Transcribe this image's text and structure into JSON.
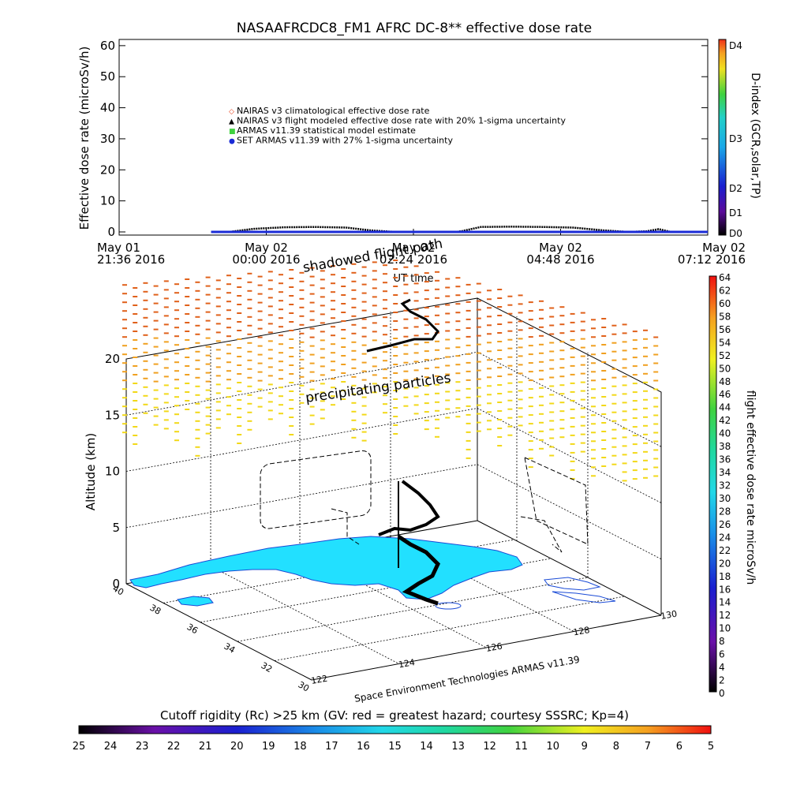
{
  "title": "NASAAFRCDC8_FM1 AFRC DC-8** effective dose rate",
  "top_chart": {
    "ylabel": "Effective dose rate (microSv/h)",
    "xlabel": "UT time",
    "y_ticks": [
      "0",
      "10",
      "20",
      "30",
      "40",
      "50",
      "60"
    ],
    "x_ticks": [
      {
        "line1": "May 01",
        "line2": "21:36 2016"
      },
      {
        "line1": "May 02",
        "line2": "00:00 2016"
      },
      {
        "line1": "May 02",
        "line2": "02:24 2016"
      },
      {
        "line1": "May 02",
        "line2": "04:48 2016"
      },
      {
        "line1": "May 02",
        "line2": "07:12 2016"
      }
    ],
    "legend": [
      {
        "symbol": "◇",
        "color": "#e8401a",
        "label": "NAIRAS v3 climatological effective dose rate"
      },
      {
        "symbol": "▲",
        "color": "#000000",
        "label": "NAIRAS v3 flight modeled effective dose rate with 20% 1-sigma uncertainty"
      },
      {
        "symbol": "■",
        "color": "#3fd23f",
        "label": "ARMAS v11.39 statistical model estimate"
      },
      {
        "symbol": "●",
        "color": "#1a2bd6",
        "label": "SET ARMAS v11.39 with 27% 1-sigma uncertainty"
      }
    ],
    "dindex": {
      "label": "D-index (GCR,solar,TP)",
      "ticks": [
        "D0",
        "D1",
        "D2",
        "D3",
        "D4"
      ]
    }
  },
  "chart_data": {
    "type": "line",
    "title": "NASAAFRCDC8_FM1 AFRC DC-8** effective dose rate",
    "xlabel": "UT time",
    "ylabel": "Effective dose rate (microSv/h)",
    "ylim": [
      0,
      62
    ],
    "x_hours_range": [
      -2.4,
      7.2
    ],
    "series": [
      {
        "name": "NAIRAS v3 flight modeled effective dose rate with 20% 1-sigma uncertainty",
        "x": [
          -0.9,
          -0.6,
          -0.2,
          0.3,
          0.8,
          1.3,
          1.7,
          2.1,
          2.6,
          3.1,
          3.2,
          3.5,
          4.0,
          4.5,
          5.0,
          5.5,
          5.9,
          6.2,
          6.4,
          6.6,
          7.2
        ],
        "y": [
          0,
          0,
          1,
          1.5,
          1.6,
          1.4,
          0.5,
          0,
          0,
          0,
          0.3,
          1.6,
          1.7,
          1.6,
          1.4,
          0.5,
          0,
          0.2,
          0.9,
          0,
          0
        ]
      },
      {
        "name": "SET ARMAS v11.39 with 27% 1-sigma uncertainty",
        "x": [
          -0.9,
          0,
          1,
          2,
          3,
          4,
          5,
          6,
          7.2
        ],
        "y": [
          0,
          0,
          0,
          0,
          0,
          0,
          0,
          0,
          0
        ]
      }
    ]
  },
  "scene3d": {
    "annotations": {
      "shadowed": "shadowed flight path",
      "precip": "precipitating particles"
    },
    "zlabel": "Altitude (km)",
    "z_ticks": [
      "0",
      "5",
      "10",
      "15",
      "20"
    ],
    "lat_ticks": [
      "30",
      "32",
      "34",
      "36",
      "38",
      "40"
    ],
    "lon_ticks": [
      "122",
      "124",
      "126",
      "128",
      "130"
    ],
    "credit": "Space Environment Technologies ARMAS v11.39"
  },
  "right_colorbar": {
    "label": "flight effective dose rate microSv/h",
    "ticks": [
      "0",
      "2",
      "4",
      "6",
      "8",
      "10",
      "12",
      "14",
      "16",
      "18",
      "20",
      "22",
      "24",
      "26",
      "28",
      "30",
      "32",
      "34",
      "36",
      "38",
      "40",
      "42",
      "44",
      "46",
      "48",
      "50",
      "52",
      "54",
      "56",
      "58",
      "60",
      "62",
      "64"
    ]
  },
  "bottom_colorbar": {
    "label": "Cutoff rigidity (Rc) >25 km (GV: red = greatest hazard; courtesy SSSRC; Kp=4)",
    "ticks": [
      "25",
      "24",
      "23",
      "22",
      "21",
      "20",
      "19",
      "18",
      "17",
      "16",
      "15",
      "14",
      "13",
      "12",
      "11",
      "10",
      "9",
      "8",
      "7",
      "6",
      "5"
    ]
  },
  "colors": {
    "land": "#22e0ff",
    "coast": "#1a4bd6",
    "flight": "#000000"
  }
}
